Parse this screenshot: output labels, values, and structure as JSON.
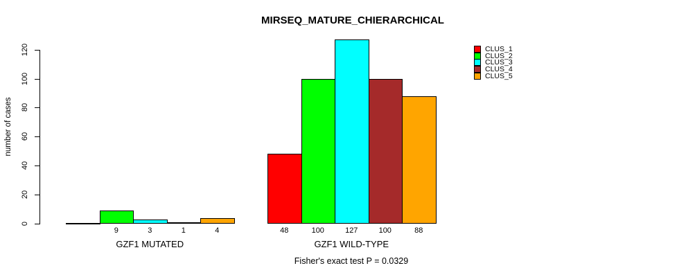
{
  "chart_data": {
    "type": "bar",
    "title": "MIRSEQ_MATURE_CHIERARCHICAL",
    "ylabel": "number of cases",
    "xlabel": "",
    "ylim": [
      0,
      127
    ],
    "yticks": [
      0,
      20,
      40,
      60,
      80,
      100,
      120
    ],
    "grid": false,
    "legend_position": "top-right",
    "categories": [
      "GZF1 MUTATED",
      "GZF1 WILD-TYPE"
    ],
    "series": [
      {
        "name": "CLUS_1",
        "color": "#FF0000",
        "values": [
          0,
          48
        ]
      },
      {
        "name": "CLUS_2",
        "color": "#00FF00",
        "values": [
          9,
          100
        ]
      },
      {
        "name": "CLUS_3",
        "color": "#00FFFF",
        "values": [
          3,
          127
        ]
      },
      {
        "name": "CLUS_4",
        "color": "#A52A2A",
        "values": [
          1,
          100
        ]
      },
      {
        "name": "CLUS_5",
        "color": "#FFA500",
        "values": [
          4,
          88
        ]
      }
    ],
    "bar_value_labels": [
      [
        "",
        "9",
        "3",
        "1",
        "4"
      ],
      [
        "48",
        "100",
        "127",
        "100",
        "88"
      ]
    ],
    "annotation": "Fisher's exact test P = 0.0329",
    "colors": {
      "background": "#FFFFFF",
      "axis": "#000000",
      "text": "#000000"
    }
  }
}
